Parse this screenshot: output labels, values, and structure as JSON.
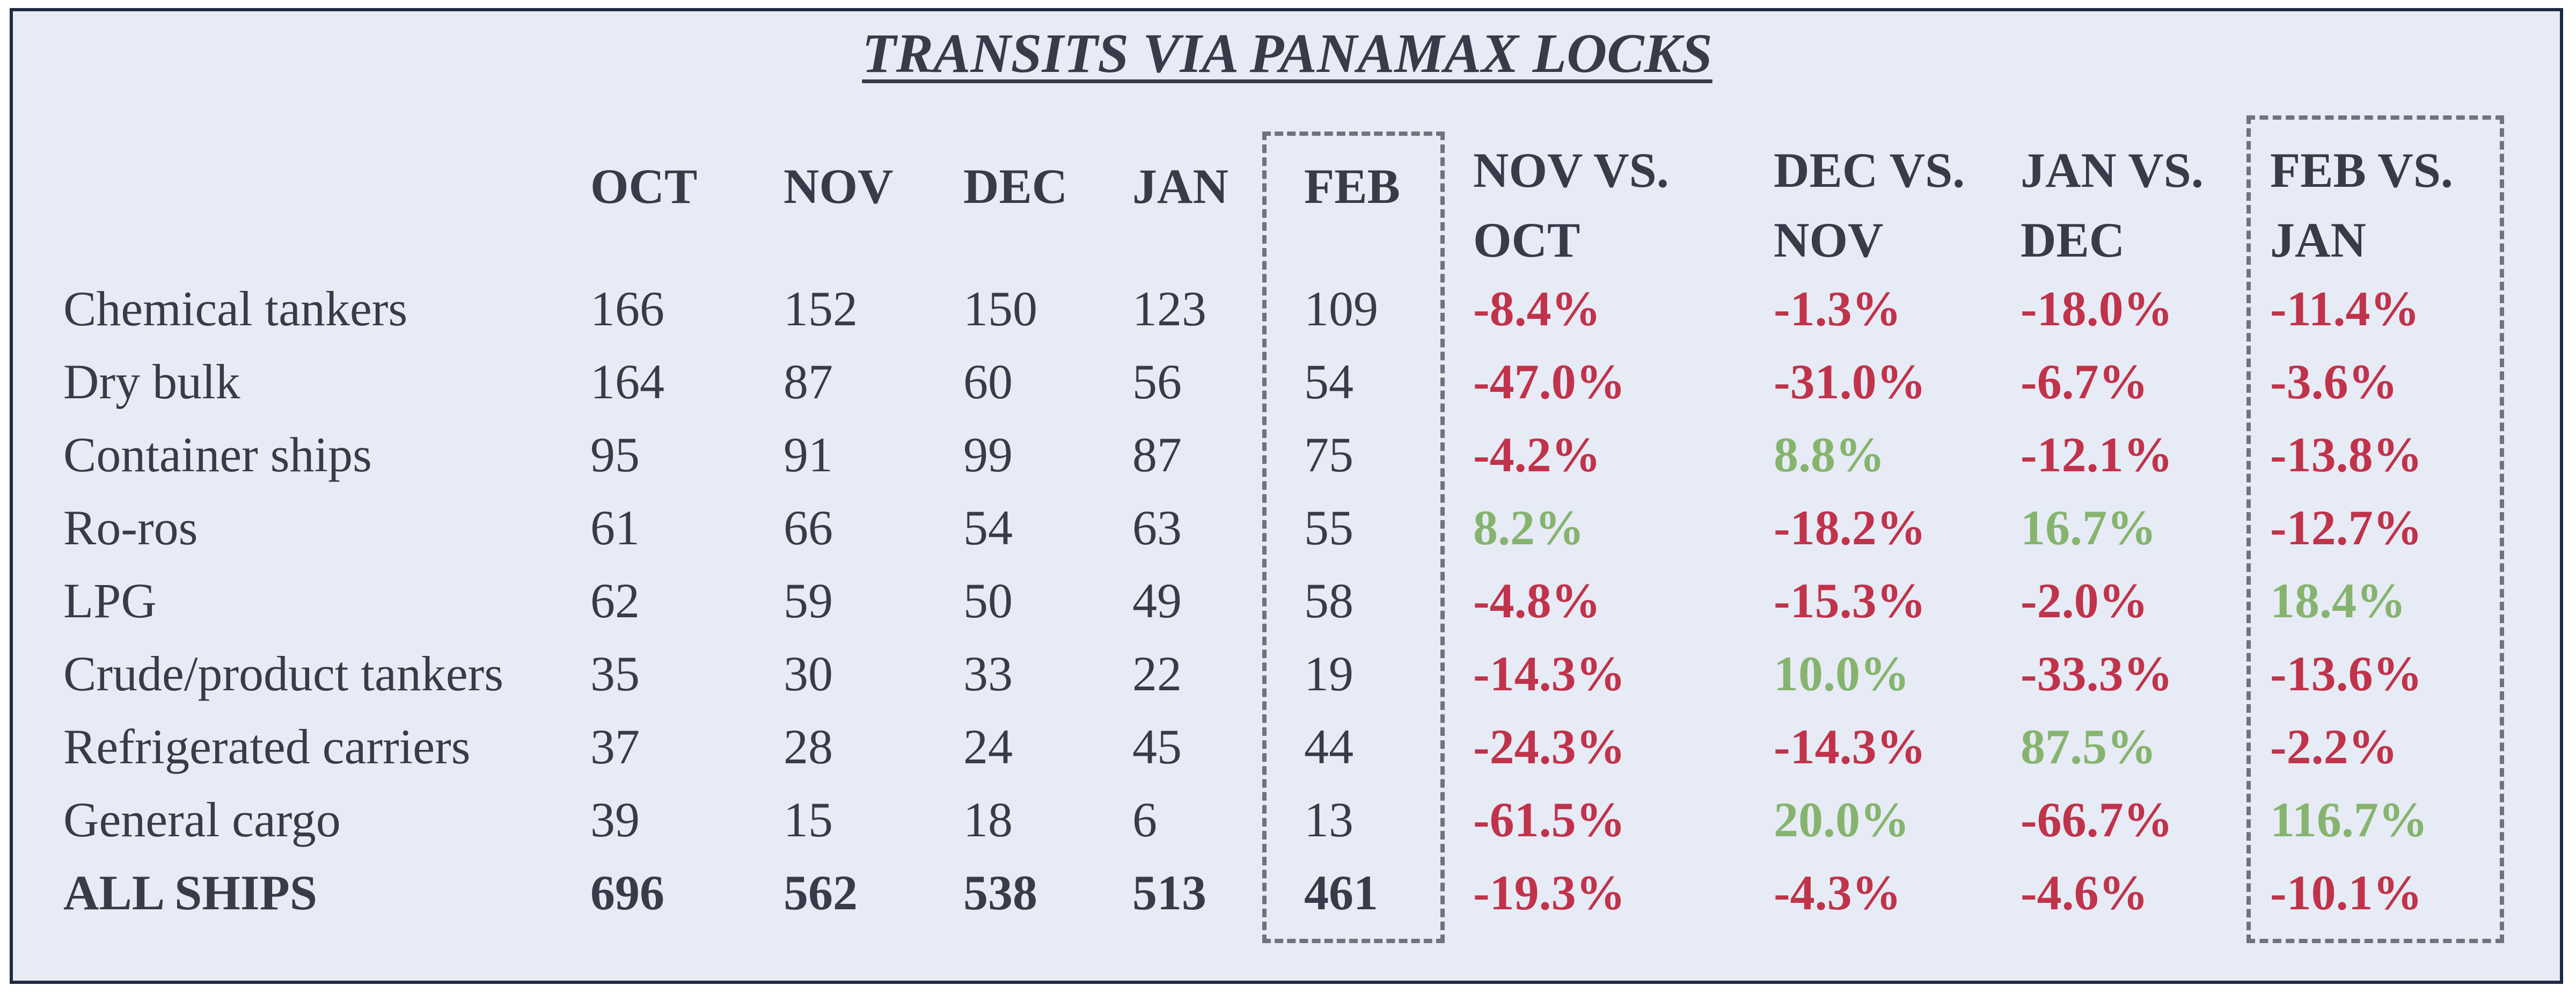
{
  "chart_data": {
    "type": "table",
    "title": "TRANSITS VIA PANAMAX LOCKS",
    "columns": [
      "OCT",
      "NOV",
      "DEC",
      "JAN",
      "FEB",
      "NOV VS. OCT",
      "DEC VS. NOV",
      "JAN VS. DEC",
      "FEB VS. JAN"
    ],
    "rows": [
      {
        "label": "Chemical tankers",
        "values": [
          "166",
          "152",
          "150",
          "123",
          "109"
        ],
        "changes": [
          "-8.4%",
          "-1.3%",
          "-18.0%",
          "-11.4%"
        ]
      },
      {
        "label": "Dry bulk",
        "values": [
          "164",
          "87",
          "60",
          "56",
          "54"
        ],
        "changes": [
          "-47.0%",
          "-31.0%",
          "-6.7%",
          "-3.6%"
        ]
      },
      {
        "label": "Container ships",
        "values": [
          "95",
          "91",
          "99",
          "87",
          "75"
        ],
        "changes": [
          "-4.2%",
          "8.8%",
          "-12.1%",
          "-13.8%"
        ]
      },
      {
        "label": "Ro-ros",
        "values": [
          "61",
          "66",
          "54",
          "63",
          "55"
        ],
        "changes": [
          "8.2%",
          "-18.2%",
          "16.7%",
          "-12.7%"
        ]
      },
      {
        "label": "LPG",
        "values": [
          "62",
          "59",
          "50",
          "49",
          "58"
        ],
        "changes": [
          "-4.8%",
          "-15.3%",
          "-2.0%",
          "18.4%"
        ]
      },
      {
        "label": "Crude/product tankers",
        "values": [
          "35",
          "30",
          "33",
          "22",
          "19"
        ],
        "changes": [
          "-14.3%",
          "10.0%",
          "-33.3%",
          "-13.6%"
        ]
      },
      {
        "label": "Refrigerated carriers",
        "values": [
          "37",
          "28",
          "24",
          "45",
          "44"
        ],
        "changes": [
          "-24.3%",
          "-14.3%",
          "87.5%",
          "-2.2%"
        ]
      },
      {
        "label": "General cargo",
        "values": [
          "39",
          "15",
          "18",
          "6",
          "13"
        ],
        "changes": [
          "-61.5%",
          "20.0%",
          "-66.7%",
          "116.7%"
        ]
      }
    ],
    "total": {
      "label": "ALL SHIPS",
      "values": [
        "696",
        "562",
        "538",
        "513",
        "461"
      ],
      "changes": [
        "-19.3%",
        "-4.3%",
        "-4.6%",
        "-10.1%"
      ]
    },
    "highlighted_columns": [
      "FEB",
      "FEB VS. JAN"
    ],
    "colors": {
      "negative": "#c0334a",
      "positive": "#86b46e",
      "text": "#3a3a4a",
      "background": "#e6ebf6"
    }
  }
}
